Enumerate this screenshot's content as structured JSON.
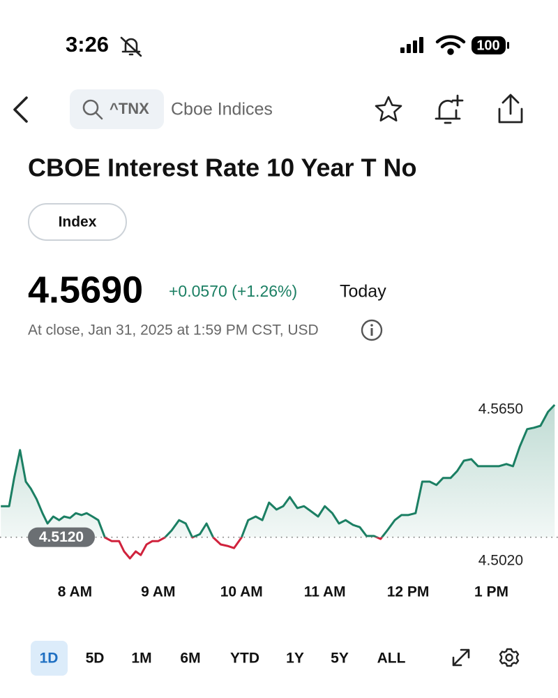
{
  "status": {
    "time": "3:26",
    "battery": "100"
  },
  "header": {
    "symbol": "^TNX",
    "exchange": "Cboe Indices"
  },
  "quote": {
    "name": "CBOE Interest Rate 10 Year T No",
    "tag": "Index",
    "price": "4.5690",
    "change": "+0.0570 (+1.26%)",
    "period": "Today",
    "note": "At close, Jan 31, 2025 at 1:59 PM CST, USD"
  },
  "chart_data": {
    "type": "line",
    "x": [
      7.11,
      7.21,
      7.27,
      7.34,
      7.41,
      7.47,
      7.54,
      7.61,
      7.67,
      7.74,
      7.81,
      7.87,
      7.94,
      8.01,
      8.08,
      8.14,
      8.21,
      8.28,
      8.36,
      8.44,
      8.53,
      8.59,
      8.66,
      8.73,
      8.79,
      8.86,
      8.93,
      9.0,
      9.08,
      9.16,
      9.25,
      9.33,
      9.41,
      9.5,
      9.58,
      9.66,
      9.75,
      9.83,
      9.91,
      10.0,
      10.08,
      10.17,
      10.25,
      10.33,
      10.42,
      10.5,
      10.58,
      10.67,
      10.75,
      10.83,
      10.92,
      11.0,
      11.09,
      11.17,
      11.25,
      11.34,
      11.42,
      11.5,
      11.59,
      11.67,
      11.75,
      11.84,
      11.92,
      12.0,
      12.09,
      12.17,
      12.26,
      12.34,
      12.42,
      12.51,
      12.59,
      12.67,
      12.76,
      12.84,
      12.92,
      13.01,
      13.09,
      13.18,
      13.26,
      13.34,
      13.43,
      13.51,
      13.59,
      13.68,
      13.76
    ],
    "series": [
      {
        "color": "#1b7f63",
        "values": [
          4.5249,
          4.5249,
          4.5366,
          4.5482,
          4.5351,
          4.5322,
          4.5278,
          4.522,
          4.5177,
          4.5206,
          4.5191,
          4.5206,
          4.52,
          4.522,
          4.5212,
          4.522,
          4.5206,
          4.5191,
          4.5119,
          4.5104,
          4.5104,
          4.5061,
          4.5032,
          4.5061,
          4.5046,
          4.509,
          4.5104,
          4.5104,
          4.5119,
          4.5148,
          4.5191,
          4.5177,
          4.5119,
          4.5133,
          4.5177,
          4.5119,
          4.509,
          4.5084,
          4.5075,
          4.5119,
          4.5191,
          4.5206,
          4.5191,
          4.5264,
          4.5235,
          4.5249,
          4.5287,
          4.5241,
          4.5249,
          4.5229,
          4.5206,
          4.5249,
          4.522,
          4.5177,
          4.5191,
          4.5171,
          4.5162,
          4.5125,
          4.5125,
          4.5113,
          4.5148,
          4.5191,
          4.5212,
          4.5212,
          4.522,
          4.5351,
          4.5351,
          4.5337,
          4.5366,
          4.5366,
          4.5395,
          4.5438,
          4.5444,
          4.5415,
          4.5415,
          4.5415,
          4.5415,
          4.5424,
          4.5415,
          4.5496,
          4.5569,
          4.5575,
          4.5583,
          4.5641,
          4.567
        ]
      }
    ],
    "down_color": "#d0223c",
    "reference": {
      "value": 4.512,
      "label": "4.5120"
    },
    "xlim": [
      7.1,
      13.8
    ],
    "ylim": [
      4.4974,
      4.5728
    ],
    "xticks": [
      {
        "value": 8,
        "label": "8 AM"
      },
      {
        "value": 9,
        "label": "9 AM"
      },
      {
        "value": 10,
        "label": "10 AM"
      },
      {
        "value": 11,
        "label": "11 AM"
      },
      {
        "value": 12,
        "label": "12 PM"
      },
      {
        "value": 13,
        "label": "1 PM"
      }
    ],
    "yticks": [
      {
        "value": 4.565,
        "label": "4.5650"
      },
      {
        "value": 4.502,
        "label": "4.5020"
      }
    ]
  },
  "ranges": [
    "1D",
    "5D",
    "1M",
    "6M",
    "YTD",
    "1Y",
    "5Y",
    "ALL"
  ],
  "selected_range": "1D"
}
